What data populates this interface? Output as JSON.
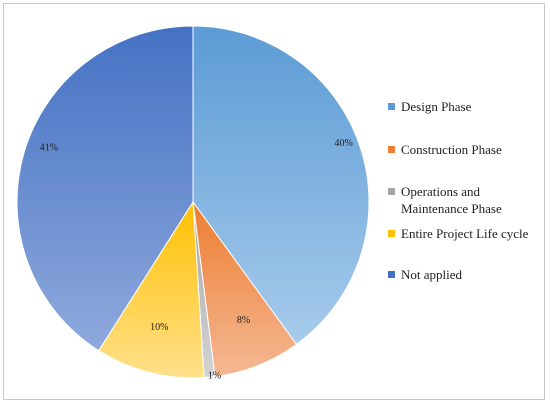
{
  "chart_data": {
    "type": "pie",
    "title": "",
    "start_angle_deg": 0,
    "direction": "clockwise",
    "legend_position": "right",
    "slices": [
      {
        "label": "Design Phase",
        "value": 40,
        "data_label": "40%",
        "color_light": "#a7cbeb",
        "color_dark": "#5b9bd5"
      },
      {
        "label": "Construction Phase",
        "value": 8,
        "data_label": "8%",
        "color_light": "#f4b893",
        "color_dark": "#ed7d31"
      },
      {
        "label": "Operations and Maintenance Phase",
        "value": 1,
        "data_label": "1%",
        "color_light": "#d4d4d4",
        "color_dark": "#a5a5a5"
      },
      {
        "label": "Entire Project Life cycle",
        "value": 10,
        "data_label": "10%",
        "color_light": "#ffe08c",
        "color_dark": "#ffc000"
      },
      {
        "label": "Not applied",
        "value": 41,
        "data_label": "41%",
        "color_light": "#8fa9dc",
        "color_dark": "#4472c4"
      }
    ]
  }
}
